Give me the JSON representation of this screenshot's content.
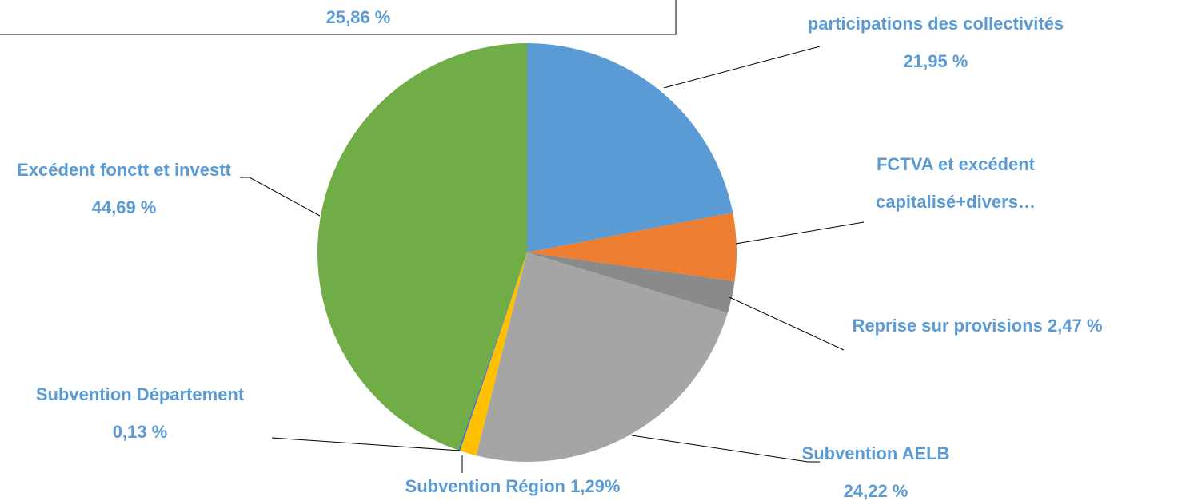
{
  "chart_data": {
    "type": "pie",
    "box_text": "25,86 %",
    "categories": [
      "participations des collectivités",
      "FCTVA et excédent capitalisé+divers…",
      "Reprise sur provisions",
      "Subvention AELB",
      "Subvention Région",
      "Subvention Département",
      "Excédent fonctt et investt"
    ],
    "values": [
      21.95,
      5.25,
      2.47,
      24.22,
      1.29,
      0.13,
      44.69
    ],
    "value_labels": [
      "21,95 %",
      null,
      "2,47 %",
      "24,22 %",
      "1,29%",
      "0,13 %",
      "44,69 %"
    ],
    "colors": [
      "#5b9bd5",
      "#ed7d31",
      "#8a8a8a",
      "#a5a5a5",
      "#ffc000",
      "#4472c4",
      "#70ad47"
    ]
  }
}
